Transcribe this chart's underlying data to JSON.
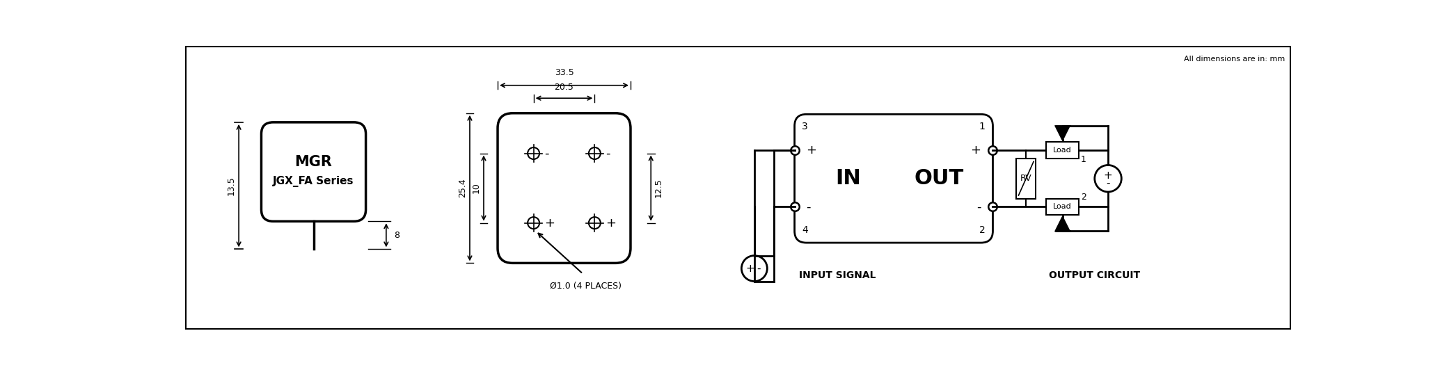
{
  "title_note": "All dimensions are in: mm",
  "bg_color": "#ffffff",
  "line_color": "#000000",
  "dim_font_size": 9,
  "note_font_size": 8,
  "pkg_label1": "MGR",
  "pkg_label2": "JGX_FA Series",
  "in_label": "IN",
  "out_label": "OUT",
  "rv_label": "RV",
  "load_label": "Load",
  "input_signal_label": "INPUT SIGNAL",
  "output_circuit_label": "OUTPUT CIRCUIT",
  "dim_33_5": "33.5",
  "dim_20_5": "20.5",
  "dim_25_4": "25.4",
  "dim_10": "10",
  "dim_12_5": "12.5",
  "dim_13_5": "13.5",
  "dim_8": "8",
  "dim_dia": "Ø1.0 (4 PLACES)"
}
